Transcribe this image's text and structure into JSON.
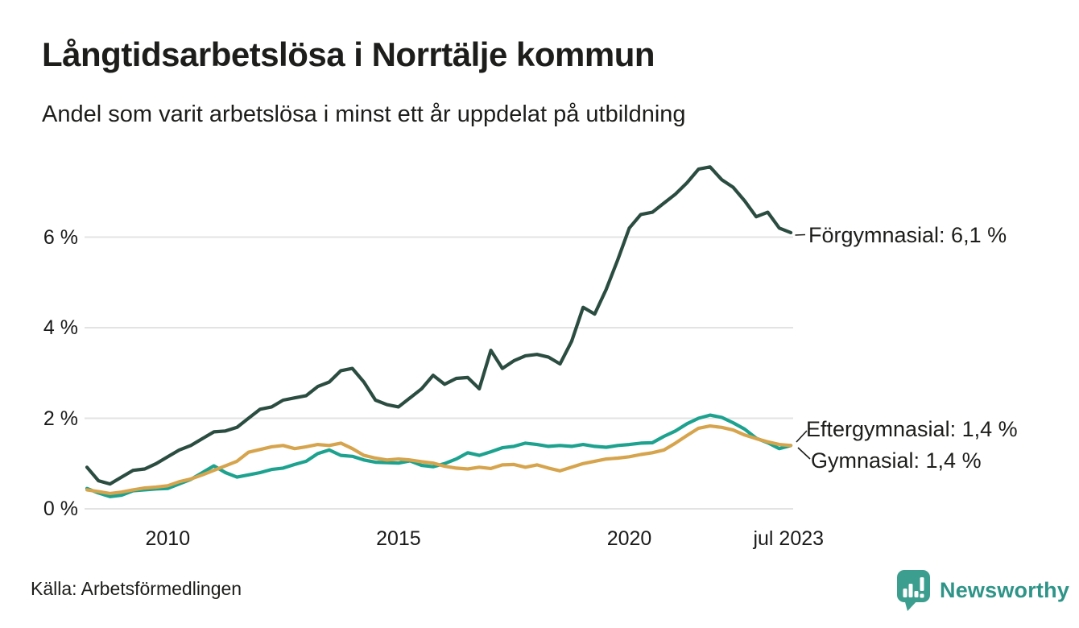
{
  "header": {
    "title": "Långtidsarbetslösa i Norrtälje kommun",
    "subtitle": "Andel som varit arbetslösa i minst ett år uppdelat på utbildning"
  },
  "chart_data": {
    "type": "line",
    "title": "Långtidsarbetslösa i Norrtälje kommun",
    "subtitle": "Andel som varit arbetslösa i minst ett år uppdelat på utbildning",
    "unit": "%",
    "xlim": [
      2008.25,
      2023.55
    ],
    "ylim": [
      0,
      7.9
    ],
    "grid": "horizontal",
    "gridline_color": "#e3e3e3",
    "background_color": "#ffffff",
    "x": [
      2008.25,
      2008.5,
      2008.75,
      2009,
      2009.25,
      2009.5,
      2009.75,
      2010,
      2010.25,
      2010.5,
      2010.75,
      2011,
      2011.25,
      2011.5,
      2011.75,
      2012,
      2012.25,
      2012.5,
      2012.75,
      2013,
      2013.25,
      2013.5,
      2013.75,
      2014,
      2014.25,
      2014.5,
      2014.75,
      2015,
      2015.25,
      2015.5,
      2015.75,
      2016,
      2016.25,
      2016.5,
      2016.75,
      2017,
      2017.25,
      2017.5,
      2017.75,
      2018,
      2018.25,
      2018.5,
      2018.75,
      2019,
      2019.25,
      2019.5,
      2019.75,
      2020,
      2020.25,
      2020.5,
      2020.75,
      2021,
      2021.25,
      2021.5,
      2021.75,
      2022,
      2022.25,
      2022.5,
      2022.75,
      2023,
      2023.25,
      2023.5
    ],
    "series": [
      {
        "name": "Eftergymnasial",
        "color": "#1ca28f",
        "end_value": "1,4 %",
        "end_label": "Eftergymnasial: 1,4 %",
        "values": [
          0.45,
          0.35,
          0.27,
          0.3,
          0.4,
          0.42,
          0.44,
          0.45,
          0.55,
          0.65,
          0.8,
          0.95,
          0.8,
          0.7,
          0.75,
          0.8,
          0.87,
          0.9,
          0.98,
          1.05,
          1.22,
          1.3,
          1.18,
          1.16,
          1.08,
          1.03,
          1.02,
          1.01,
          1.06,
          0.96,
          0.93,
          1.0,
          1.1,
          1.24,
          1.18,
          1.26,
          1.35,
          1.38,
          1.45,
          1.42,
          1.38,
          1.4,
          1.38,
          1.42,
          1.38,
          1.36,
          1.4,
          1.42,
          1.45,
          1.46,
          1.6,
          1.72,
          1.88,
          2.0,
          2.07,
          2.02,
          1.9,
          1.76,
          1.56,
          1.46,
          1.33,
          1.4
        ]
      },
      {
        "name": "Gymnasial",
        "color": "#d6a44d",
        "end_value": "1,4 %",
        "end_label": "Gymnasial: 1,4 %",
        "values": [
          0.42,
          0.38,
          0.34,
          0.37,
          0.42,
          0.46,
          0.48,
          0.51,
          0.6,
          0.66,
          0.75,
          0.85,
          0.95,
          1.05,
          1.25,
          1.31,
          1.37,
          1.4,
          1.33,
          1.37,
          1.42,
          1.4,
          1.45,
          1.33,
          1.18,
          1.12,
          1.08,
          1.1,
          1.08,
          1.04,
          1.01,
          0.94,
          0.9,
          0.88,
          0.92,
          0.89,
          0.97,
          0.98,
          0.92,
          0.97,
          0.9,
          0.84,
          0.92,
          1.0,
          1.05,
          1.1,
          1.12,
          1.15,
          1.2,
          1.24,
          1.3,
          1.45,
          1.62,
          1.78,
          1.83,
          1.8,
          1.74,
          1.63,
          1.55,
          1.48,
          1.42,
          1.4
        ]
      },
      {
        "name": "Förgymnasial",
        "color": "#2b4c41",
        "end_value": "6,1 %",
        "end_label": "Förgymnasial: 6,1 %",
        "values": [
          0.92,
          0.62,
          0.55,
          0.7,
          0.85,
          0.88,
          1.0,
          1.15,
          1.3,
          1.4,
          1.55,
          1.7,
          1.72,
          1.8,
          2.0,
          2.2,
          2.25,
          2.4,
          2.45,
          2.5,
          2.7,
          2.8,
          3.05,
          3.1,
          2.8,
          2.4,
          2.3,
          2.25,
          2.45,
          2.65,
          2.95,
          2.75,
          2.88,
          2.9,
          2.65,
          3.5,
          3.1,
          3.27,
          3.38,
          3.41,
          3.35,
          3.2,
          3.7,
          4.45,
          4.3,
          4.85,
          5.5,
          6.2,
          6.5,
          6.55,
          6.75,
          6.95,
          7.2,
          7.5,
          7.55,
          7.27,
          7.1,
          6.8,
          6.45,
          6.55,
          6.2,
          6.1
        ]
      }
    ],
    "y_ticks": [
      {
        "v": 0,
        "label": "0 %"
      },
      {
        "v": 2,
        "label": "2 %"
      },
      {
        "v": 4,
        "label": "4 %"
      },
      {
        "v": 6,
        "label": "6 %"
      }
    ],
    "x_ticks": [
      {
        "t": 2010,
        "label": "2010"
      },
      {
        "t": 2015,
        "label": "2015"
      },
      {
        "t": 2020,
        "label": "2020"
      },
      {
        "t": 2023.45,
        "label": "jul 2023"
      }
    ],
    "legend_position": "end-of-line-labels-right"
  },
  "footer": {
    "source": "Källa: Arbetsförmedlingen",
    "logo_text": "Newsworthy",
    "logo_color": "#3c9e8e"
  }
}
